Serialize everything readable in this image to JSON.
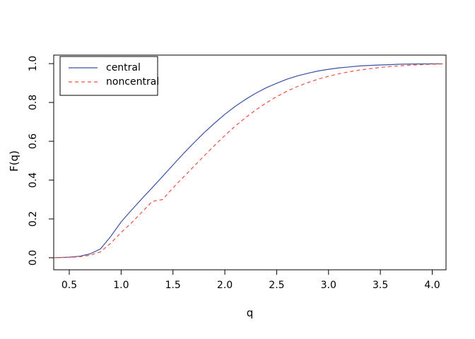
{
  "figure": {
    "xlabel": "q",
    "ylabel": "F(q)",
    "x_ticks": [
      "0.5",
      "1.0",
      "1.5",
      "2.0",
      "2.5",
      "3.0",
      "3.5",
      "4.0"
    ],
    "y_ticks": [
      "0.0",
      "0.2",
      "0.4",
      "0.6",
      "0.8",
      "1.0"
    ],
    "legend": [
      {
        "label": "central",
        "color": "#3a51a3",
        "style": "solid"
      },
      {
        "label": "noncentral",
        "color": "#f0503e",
        "style": "dashed"
      }
    ],
    "colors": {
      "background": "#ffffff",
      "box": "#000000",
      "text": "#000000"
    }
  },
  "chart_data": {
    "type": "line",
    "title": "",
    "xlabel": "q",
    "ylabel": "F(q)",
    "xlim": [
      0.35,
      4.133
    ],
    "ylim": [
      -0.062,
      1.044
    ],
    "x_tick_values": [
      0.5,
      1.0,
      1.5,
      2.0,
      2.5,
      3.0,
      3.5,
      4.0
    ],
    "y_tick_values": [
      0.0,
      0.2,
      0.4,
      0.6,
      0.8,
      1.0
    ],
    "grid": false,
    "legend_position": "top-left",
    "x": [
      0.35,
      0.4,
      0.5,
      0.6,
      0.7,
      0.8,
      0.9,
      1.0,
      1.1,
      1.2,
      1.3,
      1.4,
      1.5,
      1.6,
      1.7,
      1.8,
      1.9,
      2.0,
      2.1,
      2.2,
      2.3,
      2.4,
      2.5,
      2.6,
      2.7,
      2.8,
      2.9,
      3.0,
      3.1,
      3.2,
      3.3,
      3.4,
      3.5,
      3.6,
      3.7,
      3.8,
      3.9,
      4.0,
      4.1
    ],
    "series": [
      {
        "name": "central",
        "color": "#3a51a3",
        "linestyle": "solid",
        "values": [
          0.0,
          0.001,
          0.003,
          0.008,
          0.02,
          0.045,
          0.11,
          0.185,
          0.245,
          0.304,
          0.361,
          0.419,
          0.478,
          0.536,
          0.591,
          0.644,
          0.693,
          0.739,
          0.78,
          0.816,
          0.848,
          0.876,
          0.899,
          0.92,
          0.937,
          0.95,
          0.962,
          0.971,
          0.978,
          0.983,
          0.988,
          0.991,
          0.993,
          0.995,
          0.997,
          0.998,
          0.9985,
          0.999,
          0.9993
        ]
      },
      {
        "name": "noncentral",
        "color": "#f0503e",
        "linestyle": "dashed",
        "values": [
          0.0,
          0.001,
          0.002,
          0.005,
          0.013,
          0.03,
          0.075,
          0.13,
          0.18,
          0.235,
          0.29,
          0.3,
          0.36,
          0.415,
          0.47,
          0.525,
          0.578,
          0.63,
          0.678,
          0.722,
          0.762,
          0.798,
          0.83,
          0.858,
          0.882,
          0.902,
          0.92,
          0.935,
          0.948,
          0.958,
          0.967,
          0.974,
          0.98,
          0.985,
          0.989,
          0.992,
          0.995,
          0.997,
          0.998
        ]
      }
    ]
  }
}
